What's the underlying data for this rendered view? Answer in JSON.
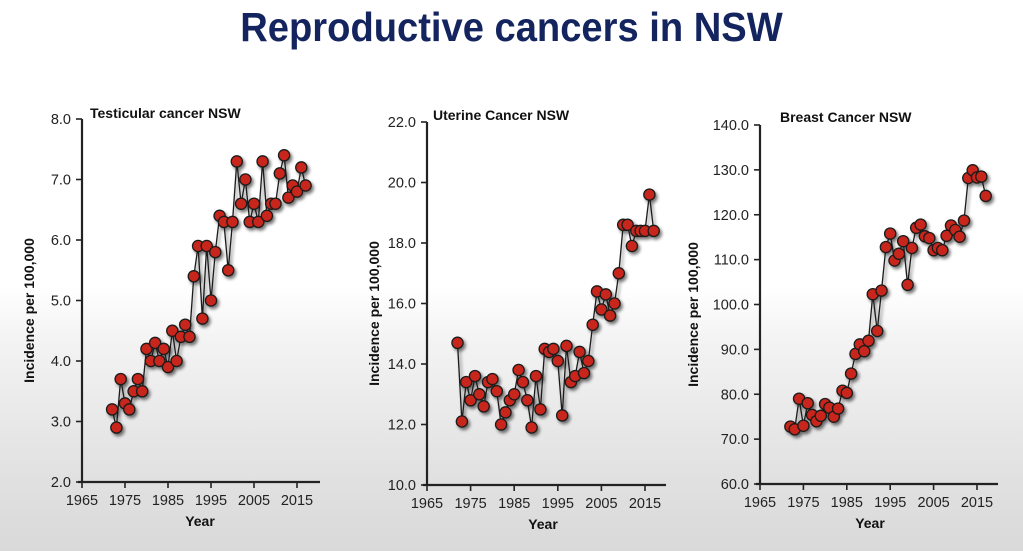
{
  "page_title": "Reproductive cancers in NSW",
  "style": {
    "title_color": "#13245e",
    "marker_color": "#c8261a",
    "line_color": "#1a1a1a"
  },
  "chart_data": [
    {
      "type": "line",
      "title": "Testicular cancer NSW",
      "xlabel": "Year",
      "ylabel": "Incidence per 100,000",
      "xlim": [
        1965,
        2020
      ],
      "ylim": [
        2.0,
        8.0
      ],
      "xticks": [
        1965,
        1975,
        1985,
        1995,
        2005,
        2015
      ],
      "yticks": [
        2.0,
        3.0,
        4.0,
        5.0,
        6.0,
        7.0,
        8.0
      ],
      "ytick_labels": [
        "2.0",
        "3.0",
        "4.0",
        "5.0",
        "6.0",
        "7.0",
        "8.0"
      ],
      "grid": false,
      "x": [
        1972,
        1973,
        1974,
        1975,
        1976,
        1977,
        1978,
        1979,
        1980,
        1981,
        1982,
        1983,
        1984,
        1985,
        1986,
        1987,
        1988,
        1989,
        1990,
        1991,
        1992,
        1993,
        1994,
        1995,
        1996,
        1997,
        1998,
        1999,
        2000,
        2001,
        2002,
        2003,
        2004,
        2005,
        2006,
        2007,
        2008,
        2009,
        2010,
        2011,
        2012,
        2013,
        2014,
        2015,
        2016,
        2017
      ],
      "series": [
        {
          "name": "Testicular cancer",
          "values": [
            3.2,
            2.9,
            3.7,
            3.3,
            3.2,
            3.5,
            3.7,
            3.5,
            4.2,
            4.0,
            4.3,
            4.0,
            4.2,
            3.9,
            4.5,
            4.0,
            4.4,
            4.6,
            4.4,
            5.4,
            5.9,
            4.7,
            5.9,
            5.0,
            5.8,
            6.4,
            6.3,
            5.5,
            6.3,
            7.3,
            6.6,
            7.0,
            6.3,
            6.6,
            6.3,
            7.3,
            6.4,
            6.6,
            6.6,
            7.1,
            7.4,
            6.7,
            6.9,
            6.8,
            7.2,
            6.9
          ]
        }
      ]
    },
    {
      "type": "line",
      "title": "Uterine Cancer NSW",
      "xlabel": "Year",
      "ylabel": "Incidence per 100,000",
      "xlim": [
        1965,
        2020
      ],
      "ylim": [
        10.0,
        22.0
      ],
      "xticks": [
        1965,
        1975,
        1985,
        1995,
        2005,
        2015
      ],
      "yticks": [
        10.0,
        12.0,
        14.0,
        16.0,
        18.0,
        20.0,
        22.0
      ],
      "ytick_labels": [
        "10.0",
        "12.0",
        "14.0",
        "16.0",
        "18.0",
        "20.0",
        "22.0"
      ],
      "grid": false,
      "x": [
        1972,
        1973,
        1974,
        1975,
        1976,
        1977,
        1978,
        1979,
        1980,
        1981,
        1982,
        1983,
        1984,
        1985,
        1986,
        1987,
        1988,
        1989,
        1990,
        1991,
        1992,
        1993,
        1994,
        1995,
        1996,
        1997,
        1998,
        1999,
        2000,
        2001,
        2002,
        2003,
        2004,
        2005,
        2006,
        2007,
        2008,
        2009,
        2010,
        2011,
        2012,
        2013,
        2014,
        2015,
        2016,
        2017
      ],
      "series": [
        {
          "name": "Uterine cancer",
          "values": [
            14.7,
            12.1,
            13.4,
            12.8,
            13.6,
            13.0,
            12.6,
            13.4,
            13.5,
            13.1,
            12.0,
            12.4,
            12.8,
            13.0,
            13.8,
            13.4,
            12.8,
            11.9,
            13.6,
            12.5,
            14.5,
            14.4,
            14.5,
            14.1,
            12.3,
            14.6,
            13.4,
            13.6,
            14.4,
            13.7,
            14.1,
            15.3,
            16.4,
            15.8,
            16.3,
            15.6,
            16.0,
            17.0,
            18.6,
            18.6,
            17.9,
            18.4,
            18.4,
            18.4,
            19.6,
            18.4
          ]
        }
      ]
    },
    {
      "type": "line",
      "title": "Breast Cancer NSW",
      "xlabel": "Year",
      "ylabel": "Incidence per 100,000",
      "xlim": [
        1965,
        2020
      ],
      "ylim": [
        60.0,
        140.0
      ],
      "xticks": [
        1965,
        1975,
        1985,
        1995,
        2005,
        2015
      ],
      "yticks": [
        60.0,
        70.0,
        80.0,
        90.0,
        100.0,
        110.0,
        120.0,
        130.0,
        140.0
      ],
      "ytick_labels": [
        "60.0",
        "70.0",
        "80.0",
        "90.0",
        "100.0",
        "110.0",
        "120.0",
        "130.0",
        "140.0"
      ],
      "grid": false,
      "x": [
        1972,
        1973,
        1974,
        1975,
        1976,
        1977,
        1978,
        1979,
        1980,
        1981,
        1982,
        1983,
        1984,
        1985,
        1986,
        1987,
        1988,
        1989,
        1990,
        1991,
        1992,
        1993,
        1994,
        1995,
        1996,
        1997,
        1998,
        1999,
        2000,
        2001,
        2002,
        2003,
        2004,
        2005,
        2006,
        2007,
        2008,
        2009,
        2010,
        2011,
        2012,
        2013,
        2014,
        2015,
        2016,
        2017
      ],
      "series": [
        {
          "name": "Breast cancer",
          "values": [
            72.8,
            72.2,
            79.0,
            73.0,
            78.0,
            75.4,
            74.0,
            75.2,
            77.8,
            77.0,
            75.0,
            76.8,
            80.8,
            80.3,
            84.6,
            89.0,
            91.1,
            89.6,
            91.9,
            102.3,
            94.1,
            103.1,
            112.8,
            115.8,
            109.8,
            111.3,
            114.1,
            104.4,
            112.6,
            117.1,
            117.8,
            115.2,
            114.8,
            112.1,
            112.6,
            112.1,
            115.3,
            117.6,
            116.6,
            115.1,
            118.7,
            128.2,
            129.9,
            128.3,
            128.5,
            124.2
          ]
        }
      ]
    }
  ]
}
